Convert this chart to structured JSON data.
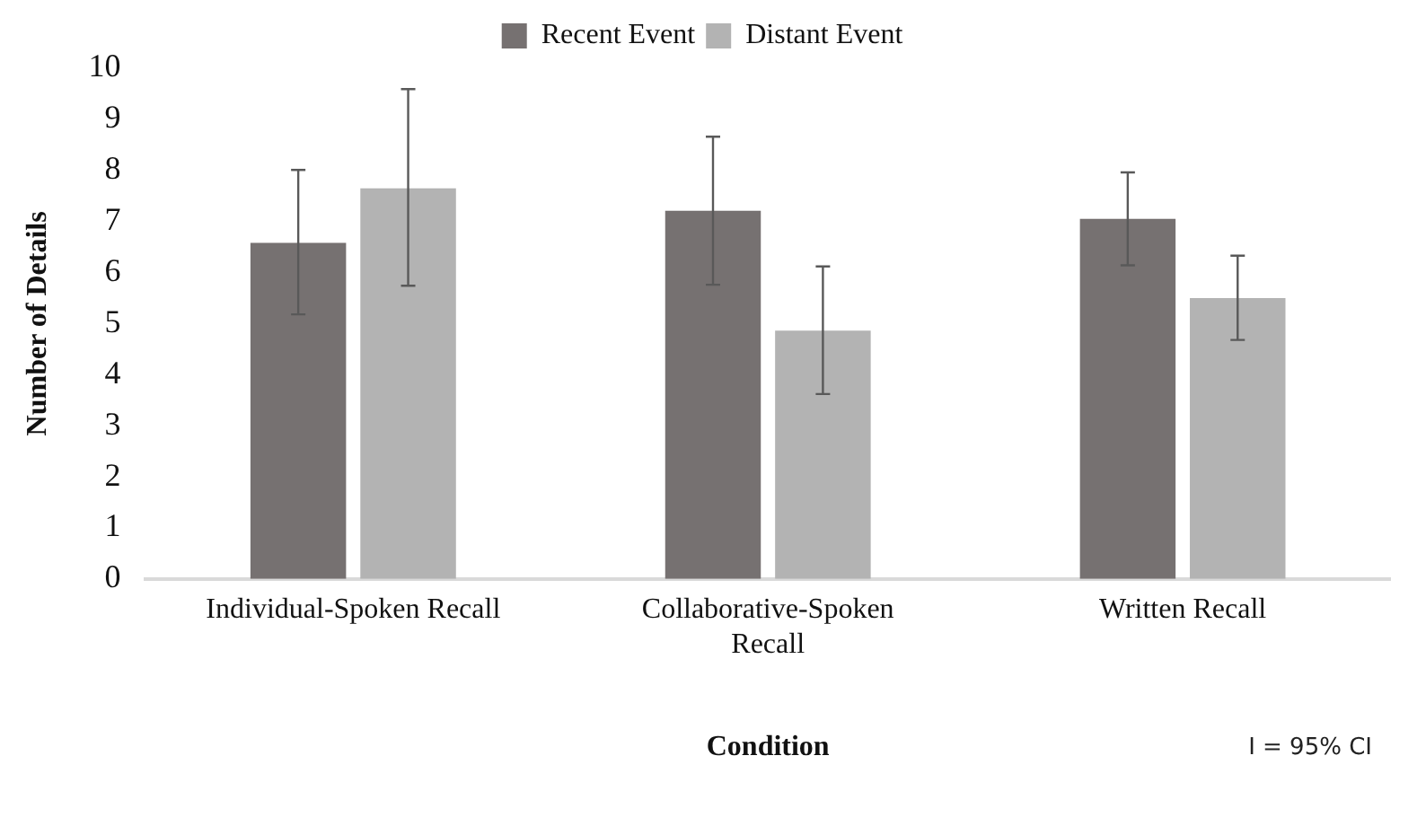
{
  "chart_data": {
    "type": "bar",
    "xlabel": "Condition",
    "ylabel": "Number of Details",
    "categories": [
      "Individual-Spoken Recall",
      "Collaborative-Spoken Recall",
      "Written Recall"
    ],
    "series": [
      {
        "name": "Recent Event",
        "color": "#767171",
        "values": [
          6.58,
          7.21,
          7.05
        ],
        "errors": [
          [
            5.18,
            8.01
          ],
          [
            5.76,
            8.66
          ],
          [
            6.14,
            7.96
          ]
        ]
      },
      {
        "name": "Distant Event",
        "color": "#b3b3b3",
        "values": [
          7.65,
          4.86,
          5.5
        ],
        "errors": [
          [
            5.74,
            9.59
          ],
          [
            3.62,
            6.12
          ],
          [
            4.68,
            6.33
          ]
        ]
      }
    ],
    "ylim": [
      0,
      10
    ],
    "yticks": [
      0,
      1,
      2,
      3,
      4,
      5,
      6,
      7,
      8,
      9,
      10
    ],
    "grid": false,
    "legend": "top",
    "annotations": [
      "I = 95% CI"
    ]
  }
}
